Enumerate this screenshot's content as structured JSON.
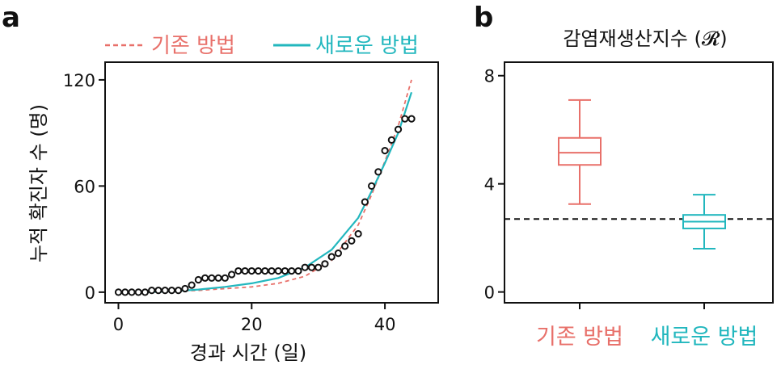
{
  "panels": {
    "a_label": "a",
    "b_label": "b"
  },
  "colors": {
    "old_method": "#E8706A",
    "new_method": "#22B7BE",
    "points": "#111111",
    "reference_line": "#111111"
  },
  "chart_data": [
    {
      "type": "scatter",
      "xlabel": "경과 시간 (일)",
      "ylabel": "누적 확진자 수 (명)",
      "xlim": [
        -2,
        48
      ],
      "ylim": [
        -6,
        130
      ],
      "x_ticks": [
        0,
        20,
        40
      ],
      "y_ticks": [
        0,
        60,
        120
      ],
      "legend": {
        "placement": "top",
        "entries": [
          "기존 방법",
          "새로운 방법"
        ]
      },
      "observed": {
        "x": [
          0,
          1,
          2,
          3,
          4,
          5,
          6,
          7,
          8,
          9,
          10,
          11,
          12,
          13,
          14,
          15,
          16,
          17,
          18,
          19,
          20,
          21,
          22,
          23,
          24,
          25,
          26,
          27,
          28,
          29,
          30,
          31,
          32,
          33,
          34,
          35,
          36,
          37,
          38,
          39,
          40,
          41,
          42,
          43,
          44
        ],
        "y": [
          0,
          0,
          0,
          0,
          0,
          1,
          1,
          1,
          1,
          1,
          2,
          4,
          7,
          8,
          8,
          8,
          8,
          10,
          12,
          12,
          12,
          12,
          12,
          12,
          12,
          12,
          12,
          12,
          14,
          14,
          14,
          16,
          20,
          22,
          26,
          29,
          33,
          51,
          60,
          68,
          80,
          86,
          92,
          98,
          98
        ]
      },
      "series": [
        {
          "name": "기존 방법",
          "style": "dashed",
          "x": [
            0,
            4,
            8,
            12,
            16,
            20,
            24,
            28,
            32,
            36,
            38,
            40,
            42,
            44
          ],
          "y": [
            0,
            0,
            0.5,
            1,
            2,
            3,
            5,
            9,
            18,
            38,
            55,
            74,
            94,
            120
          ]
        },
        {
          "name": "새로운 방법",
          "style": "solid",
          "x": [
            0,
            4,
            8,
            12,
            16,
            20,
            24,
            28,
            32,
            36,
            38,
            40,
            42,
            44
          ],
          "y": [
            0,
            0,
            0.5,
            1.5,
            3,
            5,
            8,
            14,
            24,
            42,
            57,
            73,
            90,
            113
          ]
        }
      ]
    },
    {
      "type": "box",
      "title": "감염재생산지수 (𝓡)",
      "ylim": [
        -0.4,
        8.5
      ],
      "y_ticks": [
        0,
        4,
        8
      ],
      "reference_line": 2.7,
      "categories": [
        "기존 방법",
        "새로운 방법"
      ],
      "boxes": [
        {
          "category": "기존 방법",
          "whisker_low": 3.25,
          "q1": 4.7,
          "median": 5.15,
          "q3": 5.7,
          "whisker_high": 7.1
        },
        {
          "category": "새로운 방법",
          "whisker_low": 1.6,
          "q1": 2.35,
          "median": 2.6,
          "q3": 2.85,
          "whisker_high": 3.6
        }
      ]
    }
  ]
}
